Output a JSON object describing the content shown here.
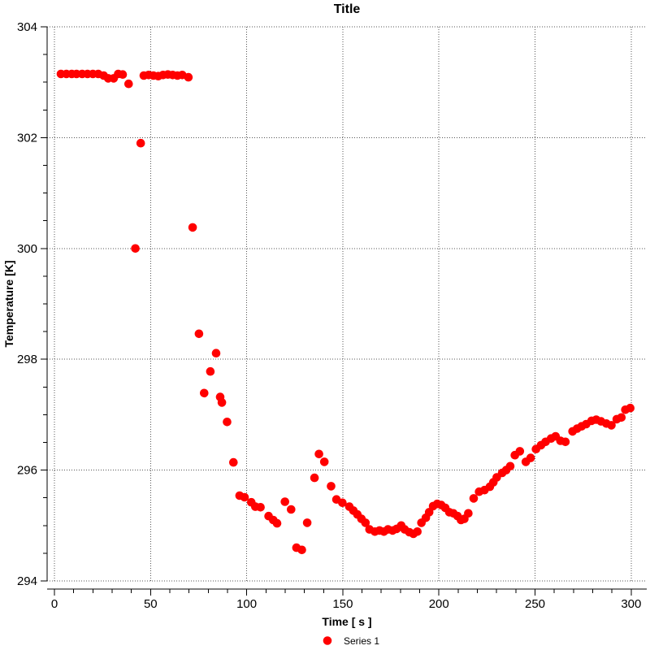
{
  "window": {
    "background": "#ffffff"
  },
  "chart_data": {
    "type": "scatter",
    "title": "Title",
    "xlabel": "Time [ s ]",
    "ylabel": "Temperature [K]",
    "xlim": [
      -3.8,
      308.1
    ],
    "ylim": [
      294,
      304
    ],
    "x_major_ticks": [
      0,
      50,
      100,
      150,
      200,
      250,
      300
    ],
    "x_minor_step": 10,
    "y_major_ticks": [
      294,
      296,
      298,
      300,
      302,
      304
    ],
    "y_minor_step": 0.5,
    "grid": {
      "visible": true,
      "style": "dotted",
      "color": "#555555",
      "on_major_ticks_only": true
    },
    "legend": {
      "position": "bottom-center",
      "entries": [
        {
          "label": "Series 1",
          "marker": "circle",
          "color": "#ff0000"
        }
      ]
    },
    "series": [
      {
        "name": "Series 1",
        "color": "#ff0000",
        "marker": "circle",
        "marker_radius": 5.3,
        "points": [
          [
            3.4,
            303.15
          ],
          [
            6.2,
            303.15
          ],
          [
            9.0,
            303.15
          ],
          [
            11.5,
            303.15
          ],
          [
            14.4,
            303.15
          ],
          [
            17.2,
            303.15
          ],
          [
            20.0,
            303.15
          ],
          [
            22.8,
            303.15
          ],
          [
            25.6,
            303.12
          ],
          [
            28.0,
            303.07
          ],
          [
            30.8,
            303.07
          ],
          [
            33.2,
            303.15
          ],
          [
            35.5,
            303.14
          ],
          [
            38.6,
            302.97
          ],
          [
            42.1,
            300.0
          ],
          [
            44.9,
            301.9
          ],
          [
            46.5,
            303.12
          ],
          [
            49.0,
            303.13
          ],
          [
            51.5,
            303.12
          ],
          [
            54.0,
            303.11
          ],
          [
            56.5,
            303.13
          ],
          [
            59.0,
            303.14
          ],
          [
            61.5,
            303.13
          ],
          [
            64.0,
            303.12
          ],
          [
            66.5,
            303.13
          ],
          [
            69.7,
            303.09
          ],
          [
            71.9,
            300.38
          ],
          [
            75.2,
            298.46
          ],
          [
            77.9,
            297.39
          ],
          [
            81.1,
            297.78
          ],
          [
            84.1,
            298.11
          ],
          [
            86.2,
            297.32
          ],
          [
            87.1,
            297.22
          ],
          [
            89.8,
            296.87
          ],
          [
            93.1,
            296.14
          ],
          [
            96.3,
            295.54
          ],
          [
            98.9,
            295.51
          ],
          [
            102.4,
            295.42
          ],
          [
            104.5,
            295.34
          ],
          [
            107.2,
            295.33
          ],
          [
            111.4,
            295.17
          ],
          [
            113.8,
            295.1
          ],
          [
            115.8,
            295.04
          ],
          [
            119.9,
            295.43
          ],
          [
            123.1,
            295.29
          ],
          [
            125.9,
            294.6
          ],
          [
            128.7,
            294.56
          ],
          [
            131.5,
            295.05
          ],
          [
            135.3,
            295.86
          ],
          [
            137.6,
            296.29
          ],
          [
            140.4,
            296.15
          ],
          [
            143.9,
            295.71
          ],
          [
            146.7,
            295.47
          ],
          [
            149.8,
            295.41
          ],
          [
            153.4,
            295.34
          ],
          [
            155.5,
            295.27
          ],
          [
            157.6,
            295.2
          ],
          [
            159.7,
            295.12
          ],
          [
            161.8,
            295.05
          ],
          [
            163.9,
            294.93
          ],
          [
            166.7,
            294.89
          ],
          [
            169.1,
            294.91
          ],
          [
            171.4,
            294.89
          ],
          [
            173.5,
            294.93
          ],
          [
            175.9,
            294.91
          ],
          [
            178.0,
            294.94
          ],
          [
            180.4,
            295.0
          ],
          [
            182.2,
            294.93
          ],
          [
            184.6,
            294.88
          ],
          [
            186.7,
            294.85
          ],
          [
            188.8,
            294.89
          ],
          [
            190.9,
            295.05
          ],
          [
            193.2,
            295.14
          ],
          [
            194.9,
            295.24
          ],
          [
            197.0,
            295.35
          ],
          [
            199.1,
            295.39
          ],
          [
            201.2,
            295.37
          ],
          [
            203.3,
            295.32
          ],
          [
            205.4,
            295.24
          ],
          [
            207.5,
            295.22
          ],
          [
            209.7,
            295.17
          ],
          [
            211.5,
            295.1
          ],
          [
            213.2,
            295.12
          ],
          [
            215.3,
            295.22
          ],
          [
            218.1,
            295.49
          ],
          [
            220.9,
            295.61
          ],
          [
            223.7,
            295.64
          ],
          [
            226.5,
            295.7
          ],
          [
            228.3,
            295.78
          ],
          [
            230.1,
            295.87
          ],
          [
            232.9,
            295.95
          ],
          [
            235.0,
            296.0
          ],
          [
            237.1,
            296.07
          ],
          [
            239.5,
            296.27
          ],
          [
            242.1,
            296.34
          ],
          [
            245.2,
            296.15
          ],
          [
            247.7,
            296.22
          ],
          [
            250.5,
            296.38
          ],
          [
            253.1,
            296.45
          ],
          [
            255.5,
            296.51
          ],
          [
            258.3,
            296.57
          ],
          [
            260.7,
            296.61
          ],
          [
            263.2,
            296.53
          ],
          [
            265.8,
            296.51
          ],
          [
            269.5,
            296.7
          ],
          [
            271.9,
            296.75
          ],
          [
            274.2,
            296.79
          ],
          [
            276.6,
            296.83
          ],
          [
            279.4,
            296.89
          ],
          [
            281.8,
            296.91
          ],
          [
            284.3,
            296.88
          ],
          [
            287.1,
            296.84
          ],
          [
            289.7,
            296.81
          ],
          [
            292.5,
            296.92
          ],
          [
            294.9,
            296.95
          ],
          [
            297.0,
            297.09
          ],
          [
            299.5,
            297.12
          ]
        ]
      }
    ]
  },
  "colors": {
    "marker": "#ff0000",
    "grid": "#555555",
    "axis": "#000000",
    "text": "#000000",
    "background": "#ffffff"
  }
}
